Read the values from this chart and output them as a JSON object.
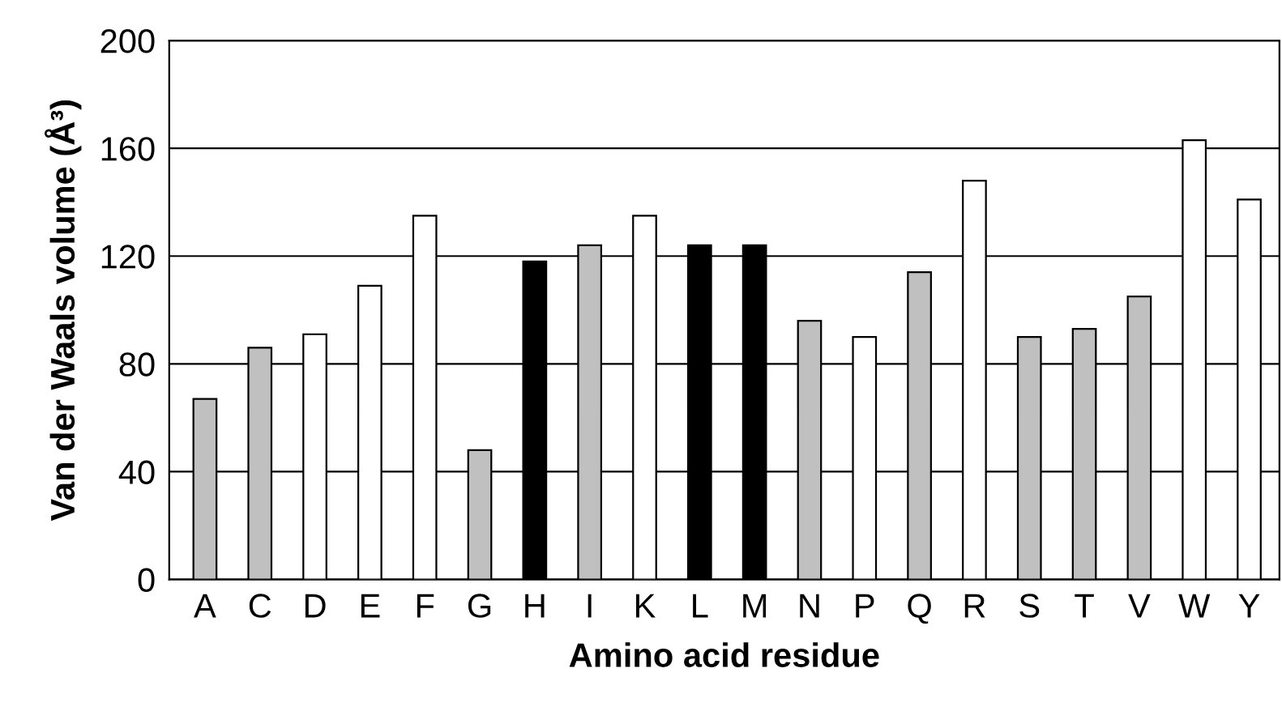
{
  "chart_data": {
    "type": "bar",
    "xlabel": "Amino acid residue",
    "ylabel": "Van der Waals volume (Å³)",
    "categories": [
      "A",
      "C",
      "D",
      "E",
      "F",
      "G",
      "H",
      "I",
      "K",
      "L",
      "M",
      "N",
      "P",
      "Q",
      "R",
      "S",
      "T",
      "V",
      "W",
      "Y"
    ],
    "values": [
      67,
      86,
      91,
      109,
      135,
      48,
      118,
      124,
      135,
      124,
      124,
      96,
      90,
      114,
      148,
      90,
      93,
      105,
      163,
      141
    ],
    "colors": [
      "#c0c0c0",
      "#c0c0c0",
      "#ffffff",
      "#ffffff",
      "#ffffff",
      "#c0c0c0",
      "#000000",
      "#c0c0c0",
      "#ffffff",
      "#000000",
      "#000000",
      "#c0c0c0",
      "#ffffff",
      "#c0c0c0",
      "#ffffff",
      "#c0c0c0",
      "#c0c0c0",
      "#c0c0c0",
      "#ffffff",
      "#ffffff"
    ],
    "ylim": [
      0,
      200
    ],
    "yticks": [
      0,
      40,
      80,
      120,
      160,
      200
    ],
    "grid": "y"
  }
}
